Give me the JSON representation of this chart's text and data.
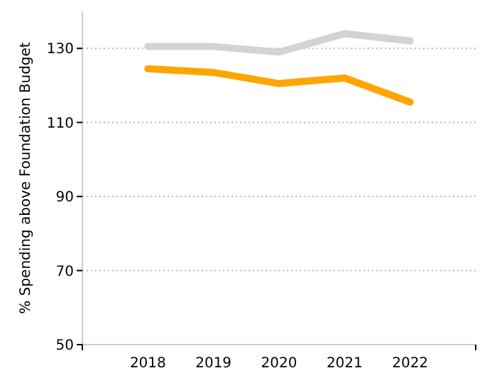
{
  "chart_data": {
    "type": "line",
    "ylabel": "% Spending above Foundation Budget",
    "categories": [
      "2018",
      "2019",
      "2020",
      "2021",
      "2022"
    ],
    "series": [
      {
        "color": "#d3d3d3",
        "values": [
          130.5,
          130.5,
          129,
          134,
          132
        ]
      },
      {
        "color": "#ffa500",
        "values": [
          124.5,
          123.5,
          120.5,
          122,
          115.5
        ]
      }
    ],
    "ylim": [
      50,
      140
    ],
    "yticks": [
      50,
      70,
      90,
      110,
      130
    ],
    "grid": "y",
    "marker": "none",
    "line_style": "solid"
  }
}
